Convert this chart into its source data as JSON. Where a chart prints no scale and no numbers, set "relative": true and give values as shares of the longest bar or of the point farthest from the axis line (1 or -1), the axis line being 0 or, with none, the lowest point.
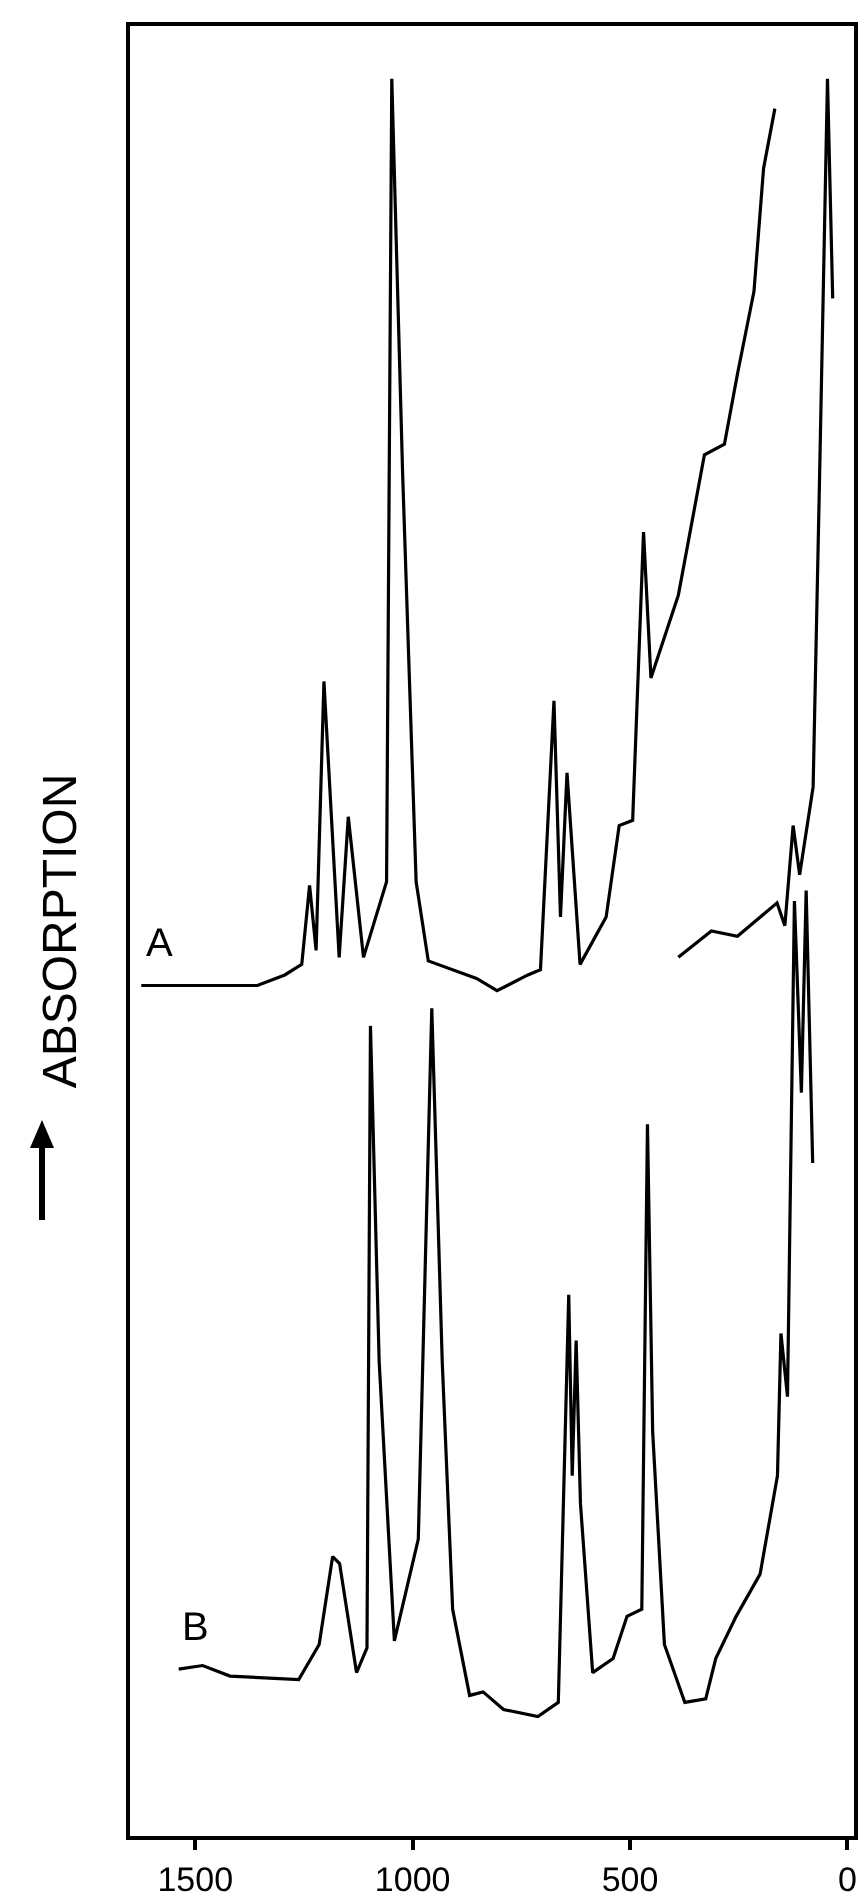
{
  "chart_data": {
    "type": "line",
    "ylabel": "ABSORPTION",
    "relative": true,
    "xlim": [
      1650,
      -15
    ],
    "xticks": [
      1500,
      1000,
      500,
      0
    ],
    "grid": false,
    "legend": false,
    "marker": "none",
    "line_style": "solid",
    "series": [
      {
        "name": "A",
        "color": "#000000",
        "x": [
          1624,
          1357,
          1294,
          1255,
          1237,
          1222,
          1204,
          1169,
          1148,
          1113,
          1060,
          1048,
          1023,
          992,
          964,
          853,
          806,
          735,
          706,
          675,
          660,
          645,
          615,
          555,
          525,
          494,
          469,
          452,
          389,
          329,
          283,
          253,
          215,
          193,
          167
        ],
        "values": [
          0.484,
          0.484,
          0.49,
          0.496,
          0.541,
          0.504,
          0.657,
          0.5,
          0.58,
          0.5,
          0.543,
          1.0,
          0.775,
          0.543,
          0.498,
          0.488,
          0.481,
          0.49,
          0.493,
          0.646,
          0.523,
          0.605,
          0.496,
          0.523,
          0.575,
          0.578,
          0.742,
          0.659,
          0.706,
          0.786,
          0.792,
          0.832,
          0.879,
          0.949,
          0.983
        ]
      },
      {
        "color": "#000000",
        "x": [
          389,
          313,
          253,
          162,
          144,
          125,
          110,
          79,
          64,
          46,
          34
        ],
        "values": [
          0.5,
          0.515,
          0.512,
          0.531,
          0.518,
          0.575,
          0.547,
          0.597,
          0.775,
          1.0,
          0.875
        ]
      },
      {
        "name": "B",
        "color": "#000000",
        "x": [
          1538,
          1483,
          1420,
          1262,
          1215,
          1184,
          1168,
          1129,
          1105,
          1097,
          1077,
          1042,
          987,
          956,
          932,
          908,
          869,
          838,
          791,
          712,
          665,
          641,
          633,
          624,
          614,
          586,
          539,
          507,
          473,
          460,
          448,
          421,
          374,
          326,
          303,
          256,
          201,
          161,
          153,
          138,
          122,
          106,
          95,
          80
        ],
        "values": [
          0.095,
          0.097,
          0.091,
          0.089,
          0.109,
          0.159,
          0.155,
          0.093,
          0.107,
          0.461,
          0.27,
          0.111,
          0.169,
          0.471,
          0.27,
          0.129,
          0.08,
          0.082,
          0.072,
          0.068,
          0.076,
          0.308,
          0.205,
          0.282,
          0.189,
          0.093,
          0.101,
          0.125,
          0.129,
          0.405,
          0.23,
          0.109,
          0.076,
          0.078,
          0.101,
          0.125,
          0.149,
          0.205,
          0.286,
          0.25,
          0.532,
          0.423,
          0.538,
          0.383
        ]
      }
    ]
  }
}
